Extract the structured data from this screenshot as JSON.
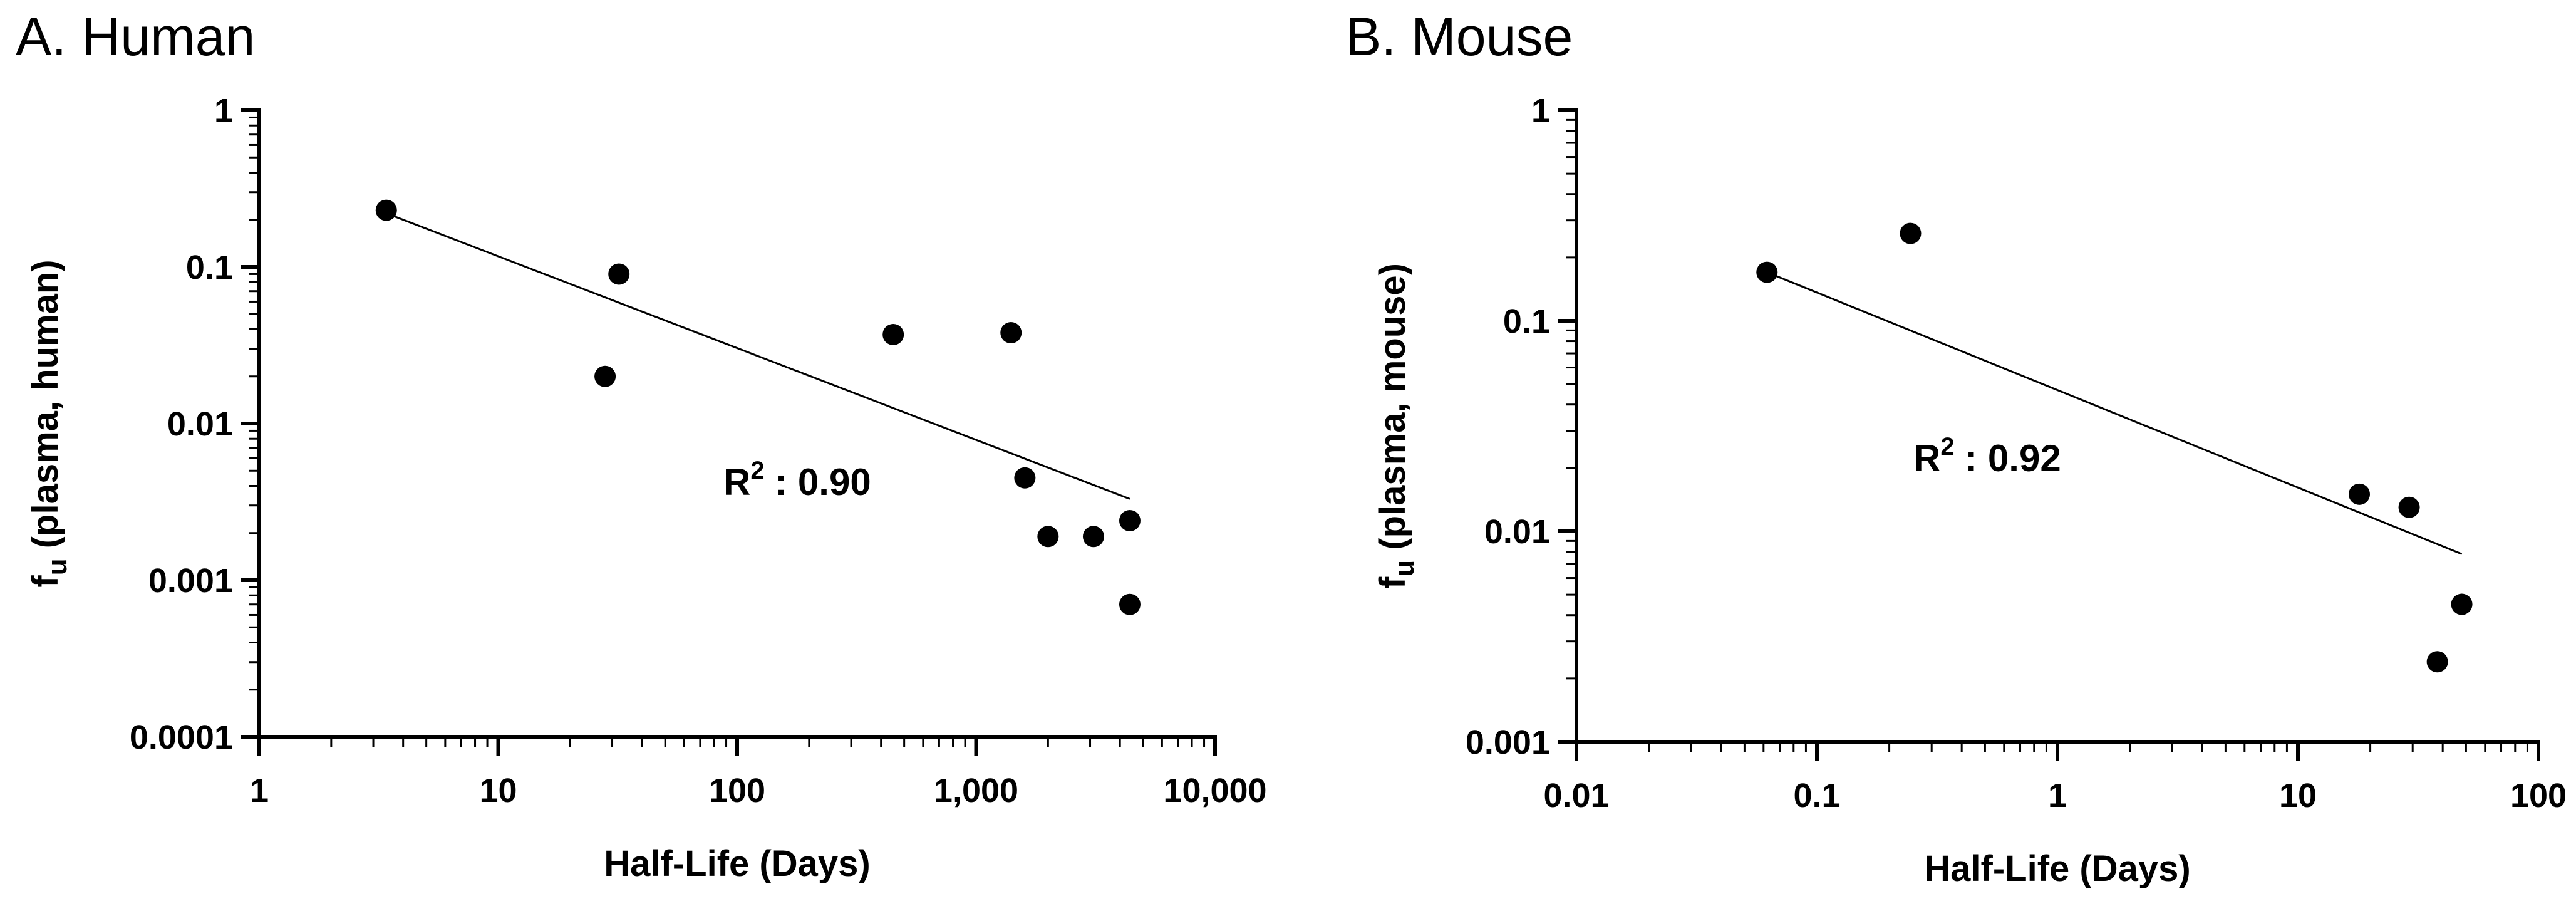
{
  "chart_data": [
    {
      "type": "scatter",
      "panel_title": "A. Human",
      "xlabel": "Half-Life (Days)",
      "ylabel": {
        "main": "f",
        "sub": "u",
        "rest": " (plasma, human)"
      },
      "xscale": "log",
      "yscale": "log",
      "xlim": [
        1,
        10000
      ],
      "ylim": [
        0.0001,
        1
      ],
      "xticks": [
        1,
        10,
        100,
        1000,
        10000
      ],
      "xtick_labels": [
        "1",
        "10",
        "100",
        "1,000",
        "10,000"
      ],
      "yticks": [
        0.0001,
        0.001,
        0.01,
        0.1,
        1
      ],
      "ytick_labels": [
        "0.0001",
        "0.001",
        "0.01",
        "0.1",
        "1"
      ],
      "points": [
        {
          "x": 3.4,
          "y": 0.23
        },
        {
          "x": 28,
          "y": 0.02
        },
        {
          "x": 32,
          "y": 0.09
        },
        {
          "x": 450,
          "y": 0.037
        },
        {
          "x": 1400,
          "y": 0.038
        },
        {
          "x": 1600,
          "y": 0.0045
        },
        {
          "x": 2000,
          "y": 0.0019
        },
        {
          "x": 3100,
          "y": 0.0019
        },
        {
          "x": 4400,
          "y": 0.0024
        },
        {
          "x": 4400,
          "y": 0.0007
        }
      ],
      "trendline": {
        "x": [
          3.4,
          4400
        ],
        "y": [
          0.22,
          0.0033
        ]
      },
      "annotation": {
        "label": "R",
        "sup": "2",
        "value": " : 0.90"
      }
    },
    {
      "type": "scatter",
      "panel_title": "B. Mouse",
      "xlabel": "Half-Life (Days)",
      "ylabel": {
        "main": "f",
        "sub": "u",
        "rest": " (plasma, mouse)"
      },
      "xscale": "log",
      "yscale": "log",
      "xlim": [
        0.01,
        100
      ],
      "ylim": [
        0.001,
        1
      ],
      "xticks": [
        0.01,
        0.1,
        1,
        10,
        100
      ],
      "xtick_labels": [
        "0.01",
        "0.1",
        "1",
        "10",
        "100"
      ],
      "yticks": [
        0.001,
        0.01,
        0.1,
        1
      ],
      "ytick_labels": [
        "0.001",
        "0.01",
        "0.1",
        "1"
      ],
      "points": [
        {
          "x": 0.062,
          "y": 0.17
        },
        {
          "x": 0.245,
          "y": 0.26
        },
        {
          "x": 18,
          "y": 0.015
        },
        {
          "x": 29,
          "y": 0.013
        },
        {
          "x": 38,
          "y": 0.0024
        },
        {
          "x": 48,
          "y": 0.0045
        }
      ],
      "trendline": {
        "x": [
          0.062,
          48
        ],
        "y": [
          0.17,
          0.0078
        ]
      },
      "annotation": {
        "label": "R",
        "sup": "2",
        "value": " : 0.92"
      }
    }
  ]
}
